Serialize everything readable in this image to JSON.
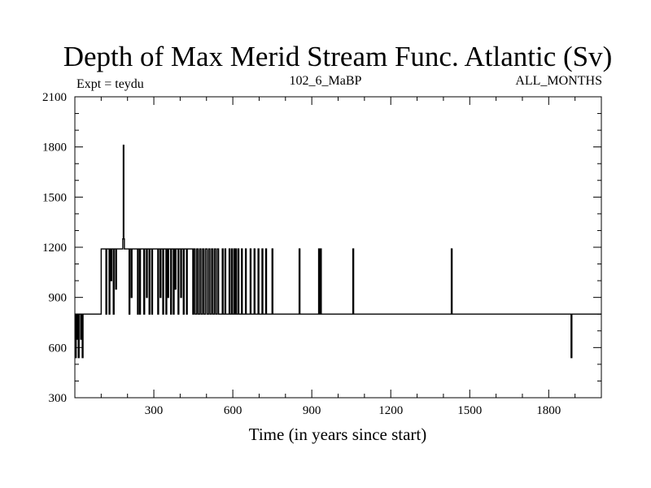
{
  "chart_data": {
    "type": "line",
    "title": "Depth of Max Merid Stream Func. Atlantic (Sv)",
    "subtitle_left": "Expt = teydu",
    "subtitle_center": "102_6_MaBP",
    "subtitle_right": "ALL_MONTHS",
    "xlabel": "Time (in years since start)",
    "ylabel": "",
    "xlim": [
      0,
      2000
    ],
    "ylim": [
      300,
      2100
    ],
    "xticks": [
      300,
      600,
      900,
      1200,
      1500,
      1800
    ],
    "yticks": [
      300,
      600,
      900,
      1200,
      1500,
      1800,
      2100
    ],
    "x_minor_step": 100,
    "y_minor_step": 100,
    "grid": false,
    "line_color": "#000000",
    "baseline": 800,
    "segments": [
      [
        0,
        100,
        800
      ],
      [
        100,
        240,
        1190
      ],
      [
        240,
        255,
        800
      ],
      [
        255,
        450,
        1190
      ],
      [
        450,
        2000,
        800
      ]
    ],
    "events": [
      [
        2,
        540
      ],
      [
        5,
        800
      ],
      [
        8,
        650
      ],
      [
        10,
        800
      ],
      [
        13,
        540
      ],
      [
        16,
        800
      ],
      [
        22,
        650
      ],
      [
        25,
        800
      ],
      [
        28,
        540
      ],
      [
        31,
        800
      ],
      [
        118,
        800
      ],
      [
        121,
        1190
      ],
      [
        130,
        800
      ],
      [
        133,
        1190
      ],
      [
        137,
        1000
      ],
      [
        140,
        1190
      ],
      [
        146,
        800
      ],
      [
        149,
        1190
      ],
      [
        155,
        950
      ],
      [
        158,
        1190
      ],
      [
        182,
        1250
      ],
      [
        184,
        1810
      ],
      [
        186,
        1250
      ],
      [
        188,
        1190
      ],
      [
        206,
        800
      ],
      [
        209,
        1190
      ],
      [
        214,
        900
      ],
      [
        217,
        1190
      ],
      [
        238,
        800
      ],
      [
        241,
        1190
      ],
      [
        246,
        800
      ],
      [
        249,
        1190
      ],
      [
        262,
        800
      ],
      [
        265,
        1190
      ],
      [
        272,
        900
      ],
      [
        275,
        1190
      ],
      [
        282,
        800
      ],
      [
        285,
        1190
      ],
      [
        292,
        800
      ],
      [
        295,
        1190
      ],
      [
        315,
        800
      ],
      [
        318,
        1190
      ],
      [
        324,
        900
      ],
      [
        327,
        1190
      ],
      [
        334,
        800
      ],
      [
        337,
        1190
      ],
      [
        346,
        800
      ],
      [
        349,
        1190
      ],
      [
        353,
        900
      ],
      [
        356,
        1190
      ],
      [
        364,
        800
      ],
      [
        367,
        1190
      ],
      [
        374,
        800
      ],
      [
        377,
        1190
      ],
      [
        381,
        950
      ],
      [
        384,
        1190
      ],
      [
        392,
        800
      ],
      [
        395,
        1190
      ],
      [
        402,
        900
      ],
      [
        405,
        1190
      ],
      [
        412,
        800
      ],
      [
        415,
        1190
      ],
      [
        424,
        800
      ],
      [
        427,
        1190
      ],
      [
        448,
        800
      ],
      [
        452,
        1190
      ],
      [
        457,
        800
      ],
      [
        463,
        1190
      ],
      [
        468,
        800
      ],
      [
        474,
        1190
      ],
      [
        479,
        800
      ],
      [
        485,
        1190
      ],
      [
        490,
        800
      ],
      [
        496,
        1190
      ],
      [
        502,
        800
      ],
      [
        508,
        1190
      ],
      [
        513,
        800
      ],
      [
        519,
        1190
      ],
      [
        524,
        800
      ],
      [
        530,
        1190
      ],
      [
        535,
        800
      ],
      [
        541,
        1190
      ],
      [
        546,
        800
      ],
      [
        560,
        1190
      ],
      [
        563,
        800
      ],
      [
        570,
        1190
      ],
      [
        573,
        800
      ],
      [
        586,
        1190
      ],
      [
        589,
        800
      ],
      [
        595,
        1190
      ],
      [
        598,
        800
      ],
      [
        604,
        1190
      ],
      [
        607,
        800
      ],
      [
        611,
        1190
      ],
      [
        614,
        800
      ],
      [
        620,
        1190
      ],
      [
        623,
        800
      ],
      [
        633,
        1190
      ],
      [
        636,
        800
      ],
      [
        648,
        1190
      ],
      [
        651,
        800
      ],
      [
        666,
        1190
      ],
      [
        669,
        800
      ],
      [
        681,
        1190
      ],
      [
        684,
        800
      ],
      [
        696,
        1190
      ],
      [
        699,
        800
      ],
      [
        711,
        1190
      ],
      [
        714,
        800
      ],
      [
        725,
        1190
      ],
      [
        728,
        800
      ],
      [
        749,
        1190
      ],
      [
        752,
        800
      ],
      [
        852,
        1190
      ],
      [
        855,
        800
      ],
      [
        926,
        1190
      ],
      [
        929,
        800
      ],
      [
        933,
        1190
      ],
      [
        936,
        800
      ],
      [
        1056,
        1190
      ],
      [
        1059,
        800
      ],
      [
        1430,
        1190
      ],
      [
        1433,
        800
      ],
      [
        1885,
        540
      ],
      [
        1888,
        800
      ]
    ]
  }
}
